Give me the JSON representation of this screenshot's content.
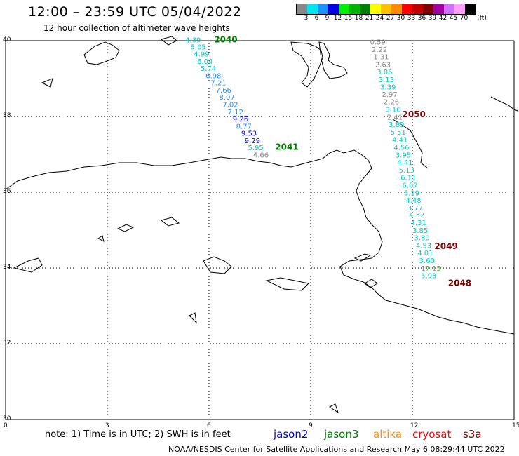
{
  "header": {
    "title": "12:00 – 23:59 UTC 05/04/2022",
    "subtitle": "12 hour collection of altimeter wave heights"
  },
  "legend": {
    "unit": "(ft)",
    "swatches": [
      {
        "label": "3",
        "color": "#888888"
      },
      {
        "label": "6",
        "color": "#00e5ee"
      },
      {
        "label": "9",
        "color": "#1e90ff"
      },
      {
        "label": "12",
        "color": "#0000e0"
      },
      {
        "label": "15",
        "color": "#00ee00"
      },
      {
        "label": "18",
        "color": "#00b400"
      },
      {
        "label": "21",
        "color": "#008000"
      },
      {
        "label": "24",
        "color": "#ffff00"
      },
      {
        "label": "27",
        "color": "#ffc000"
      },
      {
        "label": "30",
        "color": "#ff8c00"
      },
      {
        "label": "33",
        "color": "#ff0000"
      },
      {
        "label": "36",
        "color": "#c00000"
      },
      {
        "label": "39",
        "color": "#800000"
      },
      {
        "label": "42",
        "color": "#a000a0"
      },
      {
        "label": "45",
        "color": "#d070ff"
      },
      {
        "label": "70",
        "color": "#ffa0ff"
      },
      {
        "label": "",
        "color": "#000000"
      }
    ]
  },
  "axes": {
    "y_ticks": [
      {
        "lat": 40,
        "label": "40"
      },
      {
        "lat": 38,
        "label": "38"
      },
      {
        "lat": 36,
        "label": "36"
      },
      {
        "lat": 34,
        "label": "34"
      },
      {
        "lat": 32,
        "label": "32"
      },
      {
        "lat": 30,
        "label": "30"
      }
    ],
    "x_ticks": [
      {
        "lon": 0,
        "label": "0"
      },
      {
        "lon": 3,
        "label": "3"
      },
      {
        "lon": 6,
        "label": "6"
      },
      {
        "lon": 9,
        "label": "9"
      },
      {
        "lon": 12,
        "label": "12"
      },
      {
        "lon": 15,
        "label": "15"
      }
    ],
    "lon_range": [
      0,
      15
    ],
    "lat_range": [
      30,
      40
    ]
  },
  "tracks": [
    {
      "label": "2040",
      "label_lon": 6.15,
      "label_lat": 39.95,
      "label_color": "#008000",
      "points": [
        {
          "lon": 5.3,
          "lat": 39.95,
          "v": "4.39",
          "c": "#00cccc"
        },
        {
          "lon": 5.45,
          "lat": 39.77,
          "v": "5.05",
          "c": "#00cccc"
        },
        {
          "lon": 5.55,
          "lat": 39.58,
          "v": "4.99",
          "c": "#00cccc"
        },
        {
          "lon": 5.65,
          "lat": 39.39,
          "v": "6.04",
          "c": "#00cccc"
        },
        {
          "lon": 5.75,
          "lat": 39.2,
          "v": "5.74",
          "c": "#00cccc"
        },
        {
          "lon": 5.9,
          "lat": 39.01,
          "v": "6.98",
          "c": "#1e90ff"
        },
        {
          "lon": 6.05,
          "lat": 38.82,
          "v": "7.21",
          "c": "#1e90ff"
        },
        {
          "lon": 6.2,
          "lat": 38.63,
          "v": "7.66",
          "c": "#1e90ff"
        },
        {
          "lon": 6.3,
          "lat": 38.44,
          "v": "8.07",
          "c": "#1e90ff"
        },
        {
          "lon": 6.4,
          "lat": 38.25,
          "v": "7.02",
          "c": "#1e90ff"
        },
        {
          "lon": 6.55,
          "lat": 38.06,
          "v": "7.12",
          "c": "#1e90ff"
        },
        {
          "lon": 6.7,
          "lat": 37.87,
          "v": "9.26",
          "c": "#0000e0"
        },
        {
          "lon": 6.8,
          "lat": 37.68,
          "v": "8.77",
          "c": "#1e90ff"
        },
        {
          "lon": 6.95,
          "lat": 37.49,
          "v": "9.53",
          "c": "#0000e0"
        },
        {
          "lon": 7.05,
          "lat": 37.3,
          "v": "9.29",
          "c": "#0000e0"
        },
        {
          "lon": 7.15,
          "lat": 37.11,
          "v": "5.95",
          "c": "#00cccc"
        },
        {
          "lon": 7.3,
          "lat": 36.92,
          "v": "4.66",
          "c": "#888888"
        }
      ]
    },
    {
      "label": "2041",
      "label_lon": 7.95,
      "label_lat": 37.12,
      "label_color": "#008000",
      "points": []
    },
    {
      "label": "2050",
      "label_lon": 11.7,
      "label_lat": 37.98,
      "label_color": "#800000",
      "points": [
        {
          "lon": 10.75,
          "lat": 39.9,
          "v": "0.59",
          "c": "#888888"
        },
        {
          "lon": 10.8,
          "lat": 39.7,
          "v": "2.22",
          "c": "#888888"
        },
        {
          "lon": 10.85,
          "lat": 39.51,
          "v": "1.31",
          "c": "#888888"
        },
        {
          "lon": 10.9,
          "lat": 39.31,
          "v": "2.63",
          "c": "#888888"
        },
        {
          "lon": 10.95,
          "lat": 39.11,
          "v": "3.06",
          "c": "#00cccc"
        },
        {
          "lon": 11.0,
          "lat": 38.91,
          "v": "3.13",
          "c": "#00cccc"
        },
        {
          "lon": 11.05,
          "lat": 38.71,
          "v": "3.39",
          "c": "#00cccc"
        },
        {
          "lon": 11.1,
          "lat": 38.52,
          "v": "2.97",
          "c": "#888888"
        },
        {
          "lon": 11.15,
          "lat": 38.32,
          "v": "2.26",
          "c": "#888888"
        }
      ]
    },
    {
      "label": "2049",
      "label_lon": 12.65,
      "label_lat": 34.5,
      "label_color": "#800000",
      "points": [
        {
          "lon": 11.2,
          "lat": 38.12,
          "v": "3.16",
          "c": "#00cccc"
        },
        {
          "lon": 11.25,
          "lat": 37.92,
          "v": "2.41",
          "c": "#888888"
        },
        {
          "lon": 11.3,
          "lat": 37.72,
          "v": "3.89",
          "c": "#00cccc"
        },
        {
          "lon": 11.35,
          "lat": 37.52,
          "v": "5.51",
          "c": "#00cccc"
        },
        {
          "lon": 11.4,
          "lat": 37.32,
          "v": "4.41",
          "c": "#00cccc"
        },
        {
          "lon": 11.45,
          "lat": 37.12,
          "v": "4.56",
          "c": "#00cccc"
        },
        {
          "lon": 11.5,
          "lat": 36.92,
          "v": "3.95",
          "c": "#00cccc"
        },
        {
          "lon": 11.55,
          "lat": 36.72,
          "v": "4.41",
          "c": "#00cccc"
        },
        {
          "lon": 11.6,
          "lat": 36.52,
          "v": "5.13",
          "c": "#00cccc"
        },
        {
          "lon": 11.65,
          "lat": 36.32,
          "v": "6.11",
          "c": "#00cccc"
        },
        {
          "lon": 11.7,
          "lat": 36.12,
          "v": "6.07",
          "c": "#00cccc"
        },
        {
          "lon": 11.75,
          "lat": 35.92,
          "v": "5.19",
          "c": "#00cccc"
        },
        {
          "lon": 11.8,
          "lat": 35.72,
          "v": "4.48",
          "c": "#00cccc"
        },
        {
          "lon": 11.85,
          "lat": 35.52,
          "v": "3.77",
          "c": "#00cccc"
        },
        {
          "lon": 11.9,
          "lat": 35.33,
          "v": "4.52",
          "c": "#00cccc"
        },
        {
          "lon": 11.95,
          "lat": 35.13,
          "v": "4.31",
          "c": "#00cccc"
        },
        {
          "lon": 12.0,
          "lat": 34.93,
          "v": "3.85",
          "c": "#00cccc"
        },
        {
          "lon": 12.05,
          "lat": 34.73,
          "v": "3.80",
          "c": "#00cccc"
        },
        {
          "lon": 12.1,
          "lat": 34.53,
          "v": "4.53",
          "c": "#00cccc"
        },
        {
          "lon": 12.15,
          "lat": 34.33,
          "v": "4.01",
          "c": "#00cccc"
        },
        {
          "lon": 12.2,
          "lat": 34.13,
          "v": "3.60",
          "c": "#00cccc"
        },
        {
          "lon": 12.25,
          "lat": 33.93,
          "v": "17.15",
          "c": "#00ee00"
        }
      ]
    },
    {
      "label": "2048",
      "label_lon": 13.05,
      "label_lat": 33.53,
      "label_color": "#800000",
      "points": [
        {
          "lon": 12.25,
          "lat": 33.73,
          "v": "5.93",
          "c": "#00cccc"
        }
      ]
    }
  ],
  "footer": {
    "note": "note:  1) Time is in UTC;  2) SWH is in feet",
    "satellites": [
      {
        "name": "jason2",
        "color": "#0000e0"
      },
      {
        "name": "jason3",
        "color": "#008000"
      },
      {
        "name": "altika",
        "color": "#ff8c00"
      },
      {
        "name": "cryosat",
        "color": "#ff0000"
      },
      {
        "name": "s3a",
        "color": "#800000"
      }
    ],
    "credit": "NOAA/NESDIS Center for Satellite Applications and Research    May  6 08:29:44 UTC 2022"
  },
  "colors": {
    "coastline": "#000000",
    "grid": "#000000"
  }
}
